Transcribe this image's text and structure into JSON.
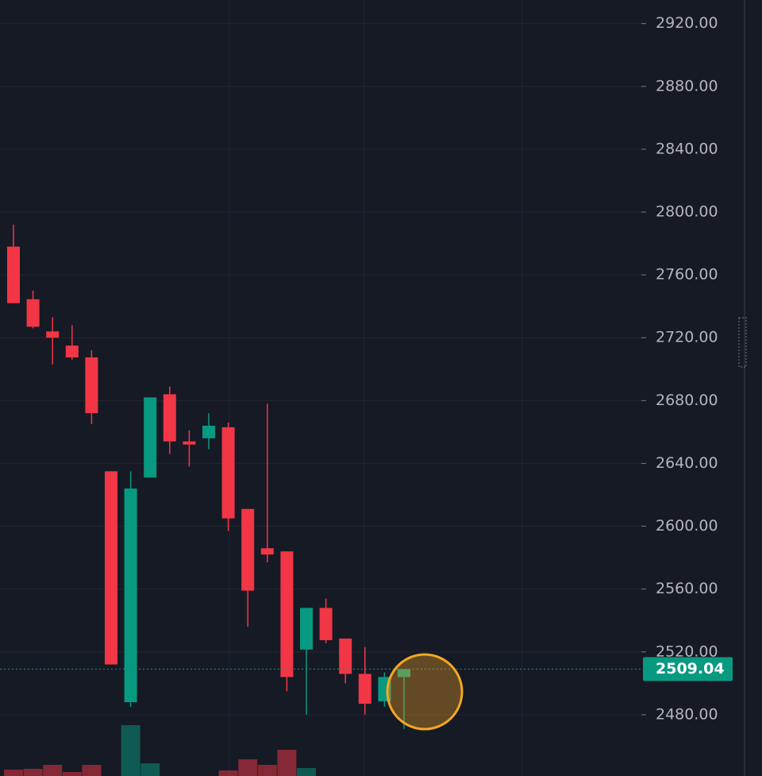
{
  "chart_data": {
    "type": "candlestick",
    "open": [
      2778,
      2744.5,
      2724,
      2715,
      2707.5,
      2635,
      2488,
      2631,
      2684,
      2654,
      2656,
      2663,
      2611,
      2586,
      2584,
      2521.5,
      2548,
      2528.5,
      2506,
      2488.5,
      2504
    ],
    "high": [
      2792,
      2750,
      2733,
      2728,
      2712,
      2635,
      2635,
      2682,
      2689,
      2661,
      2672,
      2666,
      2611,
      2678,
      2584,
      2548,
      2554,
      2528.5,
      2523,
      2507,
      2509.04
    ],
    "low": [
      2742,
      2726,
      2703,
      2706,
      2665,
      2512,
      2485,
      2631,
      2646,
      2638,
      2649,
      2597,
      2536,
      2577,
      2495,
      2480,
      2525.5,
      2500,
      2480,
      2485,
      2471
    ],
    "close": [
      2742,
      2727,
      2720,
      2707.5,
      2672,
      2512,
      2624,
      2682,
      2654,
      2652,
      2664,
      2605,
      2559,
      2582,
      2504,
      2548,
      2527.5,
      2506,
      2487,
      2504,
      2509.04
    ],
    "volume": [
      8,
      9,
      14,
      5,
      14,
      null,
      64,
      16,
      null,
      null,
      null,
      7,
      21,
      14,
      33,
      10,
      null,
      null,
      null,
      null,
      null
    ],
    "volume_lim": [
      0,
      100
    ],
    "up_color": "#089981",
    "down_color": "#f23645",
    "last_price": 2509.04,
    "ylim": [
      2441,
      2935
    ],
    "yticks": [
      {
        "value": 2480,
        "label": "2480.00"
      },
      {
        "value": 2520,
        "label": "2520.00"
      },
      {
        "value": 2560,
        "label": "2560.00"
      },
      {
        "value": 2600,
        "label": "2600.00"
      },
      {
        "value": 2640,
        "label": "2640.00"
      },
      {
        "value": 2680,
        "label": "2680.00"
      },
      {
        "value": 2720,
        "label": "2720.00"
      },
      {
        "value": 2760,
        "label": "2760.00"
      },
      {
        "value": 2800,
        "label": "2800.00"
      },
      {
        "value": 2840,
        "label": "2840.00"
      },
      {
        "value": 2880,
        "label": "2880.00"
      },
      {
        "value": 2920,
        "label": "2920.00"
      }
    ],
    "grid": true
  }
}
